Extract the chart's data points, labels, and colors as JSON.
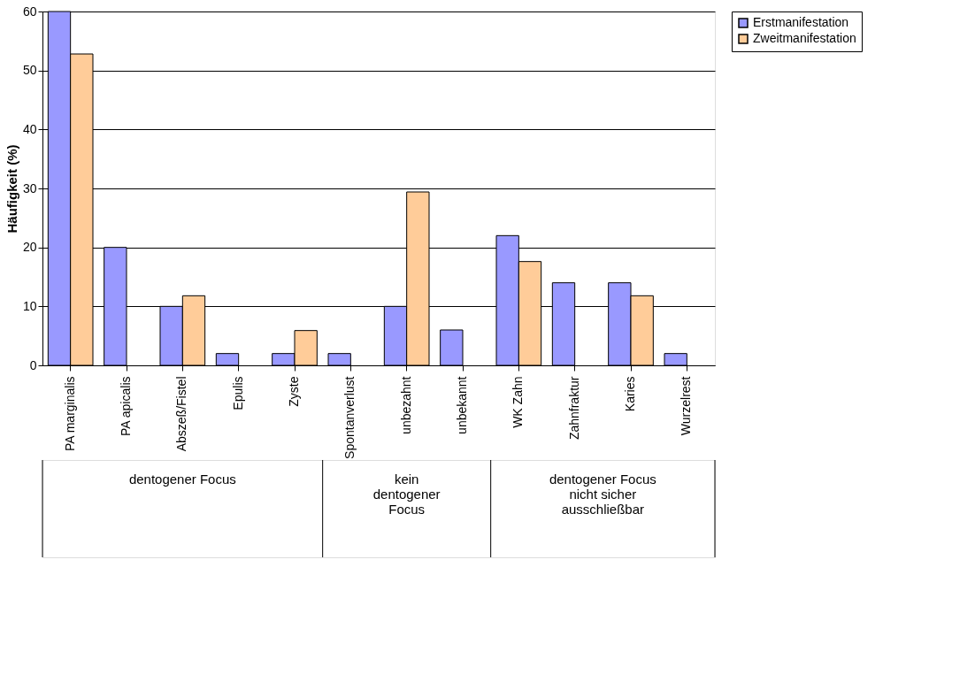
{
  "chart_data": {
    "type": "bar",
    "ylabel": "Häufigkeit (%)",
    "categories": [
      "PA marginalis",
      "PA apicalis",
      "Abszeß/Fistel",
      "Epulis",
      "Zyste",
      "Spontanverlust",
      "unbezahnt",
      "unbekannt",
      "WK Zahn",
      "Zahnfraktur",
      "Karies",
      "Wurzelrest"
    ],
    "series": [
      {
        "name": "Erstmanifestation",
        "color": "#9999ff",
        "values": [
          60,
          20,
          10,
          2,
          2,
          2,
          10,
          6,
          22,
          14,
          14,
          2
        ]
      },
      {
        "name": "Zweitmanifestation",
        "color": "#ffcc99",
        "values": [
          52.8,
          null,
          11.8,
          null,
          5.9,
          null,
          29.4,
          null,
          17.6,
          null,
          11.8,
          null
        ]
      }
    ],
    "ylim": [
      0,
      60
    ],
    "yticks": [
      0,
      10,
      20,
      30,
      40,
      50,
      60
    ],
    "grid": "y",
    "legend": "right",
    "annotations": [
      "dentogener Focus",
      "kein\ndentogener\nFocus",
      "dentogener Focus\nnicht sicher\nausschließbar"
    ]
  }
}
